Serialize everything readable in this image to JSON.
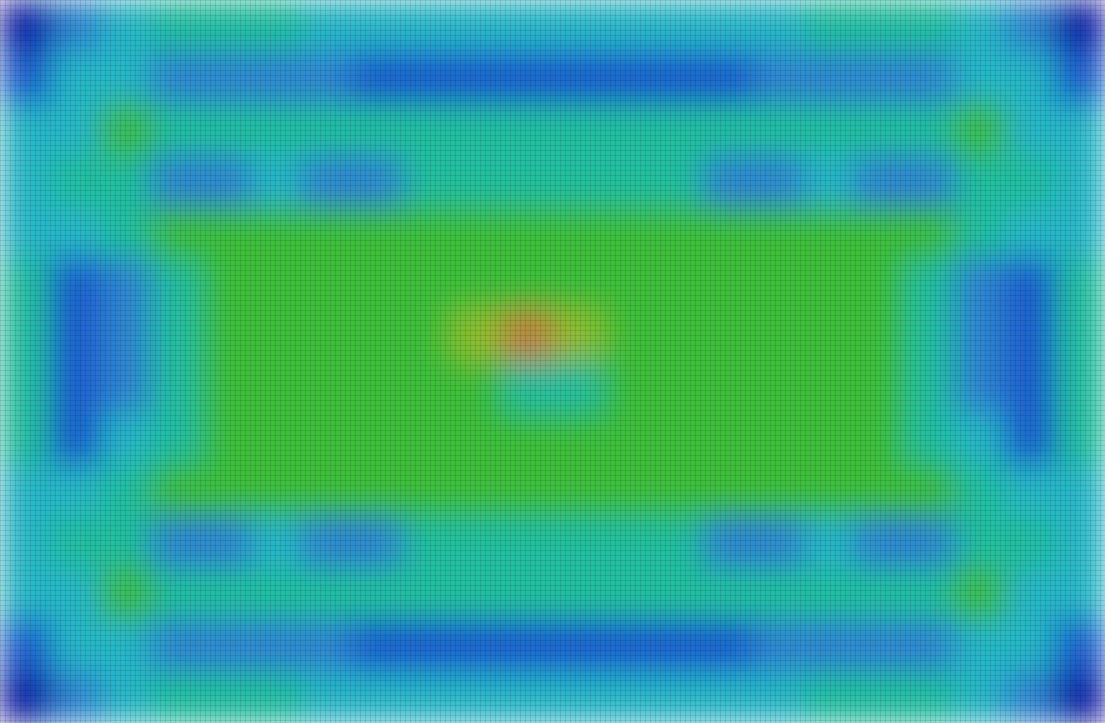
{
  "chart_data": {
    "type": "heatmap",
    "tick_labels": false,
    "colors": [
      "#0b1aa8",
      "#1e5fd0",
      "#2f86d2",
      "#26b8c8",
      "#22bfa0",
      "#3cbf3a",
      "#8fbf2a",
      "#c08040"
    ],
    "cells": [
      [
        0,
        2,
        3,
        4,
        4,
        4,
        3,
        3,
        3,
        3,
        3,
        3,
        3,
        3,
        3,
        3,
        4,
        4,
        4,
        3,
        2,
        0
      ],
      [
        1,
        3,
        3,
        2,
        2,
        2,
        2,
        1,
        1,
        1,
        1,
        1,
        1,
        1,
        1,
        2,
        2,
        2,
        2,
        3,
        3,
        1
      ],
      [
        3,
        3,
        5,
        4,
        4,
        4,
        4,
        4,
        4,
        4,
        4,
        4,
        4,
        4,
        4,
        4,
        4,
        4,
        4,
        5,
        3,
        3
      ],
      [
        3,
        4,
        4,
        2,
        2,
        3,
        2,
        2,
        4,
        4,
        4,
        4,
        4,
        4,
        2,
        2,
        3,
        2,
        2,
        4,
        4,
        3
      ],
      [
        3,
        3,
        4,
        5,
        5,
        5,
        5,
        5,
        5,
        5,
        5,
        5,
        5,
        5,
        5,
        5,
        5,
        5,
        5,
        4,
        3,
        3
      ],
      [
        4,
        1,
        2,
        4,
        5,
        5,
        5,
        5,
        5,
        5,
        5,
        5,
        5,
        5,
        5,
        5,
        5,
        5,
        4,
        2,
        1,
        4
      ],
      [
        4,
        1,
        2,
        4,
        5,
        5,
        5,
        5,
        5,
        6,
        7,
        6,
        5,
        5,
        5,
        5,
        5,
        5,
        4,
        2,
        1,
        4
      ],
      [
        4,
        1,
        2,
        4,
        5,
        5,
        5,
        5,
        5,
        5,
        4,
        4,
        5,
        5,
        5,
        5,
        5,
        5,
        4,
        2,
        1,
        4
      ],
      [
        4,
        1,
        3,
        4,
        5,
        5,
        5,
        5,
        5,
        5,
        5,
        5,
        5,
        5,
        5,
        5,
        5,
        5,
        4,
        3,
        1,
        4
      ],
      [
        3,
        3,
        4,
        5,
        5,
        5,
        5,
        5,
        5,
        5,
        5,
        5,
        5,
        5,
        5,
        5,
        5,
        5,
        5,
        4,
        3,
        3
      ],
      [
        3,
        4,
        4,
        2,
        2,
        3,
        2,
        2,
        4,
        4,
        4,
        4,
        4,
        4,
        2,
        2,
        3,
        2,
        2,
        4,
        4,
        3
      ],
      [
        3,
        3,
        5,
        4,
        4,
        4,
        4,
        4,
        4,
        4,
        4,
        4,
        4,
        4,
        4,
        4,
        4,
        4,
        4,
        5,
        3,
        3
      ],
      [
        1,
        3,
        3,
        2,
        2,
        2,
        2,
        1,
        1,
        1,
        1,
        1,
        1,
        1,
        1,
        2,
        2,
        2,
        2,
        3,
        3,
        1
      ],
      [
        0,
        2,
        3,
        4,
        4,
        4,
        3,
        3,
        3,
        3,
        3,
        3,
        3,
        3,
        3,
        3,
        4,
        4,
        4,
        3,
        2,
        0
      ]
    ]
  }
}
